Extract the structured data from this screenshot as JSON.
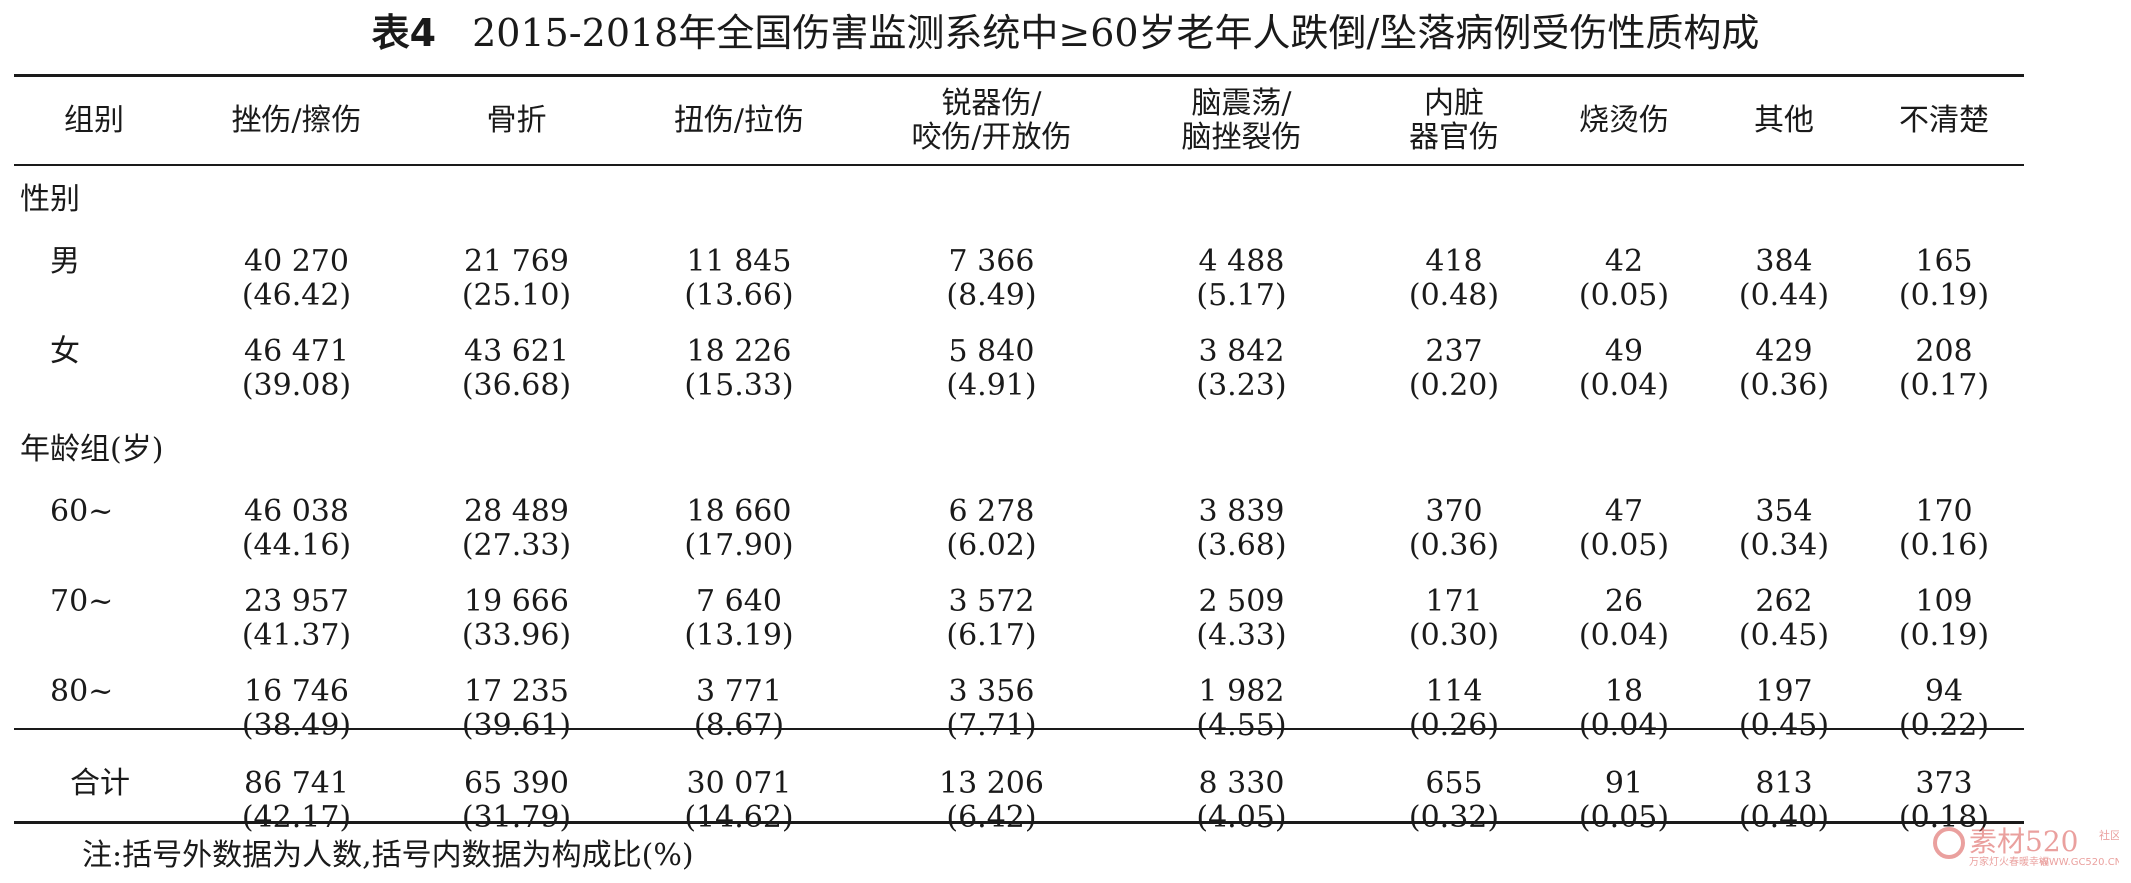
{
  "title": {
    "label": "表4",
    "text": "2015-2018年全国伤害监测系统中≥60岁老年人跌倒/坠落病例受伤性质构成"
  },
  "headers": [
    [
      "组别"
    ],
    [
      "挫伤/擦伤"
    ],
    [
      "骨折"
    ],
    [
      "扭伤/拉伤"
    ],
    [
      "锐器伤/",
      "咬伤/开放伤"
    ],
    [
      "脑震荡/",
      "脑挫裂伤"
    ],
    [
      "内脏",
      "器官伤"
    ],
    [
      "烧烫伤"
    ],
    [
      "其他"
    ],
    [
      "不清楚"
    ]
  ],
  "groups": [
    {
      "name": "性别",
      "rows": [
        {
          "label": "男",
          "cells": [
            {
              "n": "40 270",
              "p": "(46.42)"
            },
            {
              "n": "21 769",
              "p": "(25.10)"
            },
            {
              "n": "11 845",
              "p": "(13.66)"
            },
            {
              "n": "7 366",
              "p": "(8.49)"
            },
            {
              "n": "4 488",
              "p": "(5.17)"
            },
            {
              "n": "418",
              "p": "(0.48)"
            },
            {
              "n": "42",
              "p": "(0.05)"
            },
            {
              "n": "384",
              "p": "(0.44)"
            },
            {
              "n": "165",
              "p": "(0.19)"
            }
          ]
        },
        {
          "label": "女",
          "cells": [
            {
              "n": "46 471",
              "p": "(39.08)"
            },
            {
              "n": "43 621",
              "p": "(36.68)"
            },
            {
              "n": "18 226",
              "p": "(15.33)"
            },
            {
              "n": "5 840",
              "p": "(4.91)"
            },
            {
              "n": "3 842",
              "p": "(3.23)"
            },
            {
              "n": "237",
              "p": "(0.20)"
            },
            {
              "n": "49",
              "p": "(0.04)"
            },
            {
              "n": "429",
              "p": "(0.36)"
            },
            {
              "n": "208",
              "p": "(0.17)"
            }
          ]
        }
      ]
    },
    {
      "name": "年龄组(岁)",
      "rows": [
        {
          "label": "60~",
          "cells": [
            {
              "n": "46 038",
              "p": "(44.16)"
            },
            {
              "n": "28 489",
              "p": "(27.33)"
            },
            {
              "n": "18 660",
              "p": "(17.90)"
            },
            {
              "n": "6 278",
              "p": "(6.02)"
            },
            {
              "n": "3 839",
              "p": "(3.68)"
            },
            {
              "n": "370",
              "p": "(0.36)"
            },
            {
              "n": "47",
              "p": "(0.05)"
            },
            {
              "n": "354",
              "p": "(0.34)"
            },
            {
              "n": "170",
              "p": "(0.16)"
            }
          ]
        },
        {
          "label": "70~",
          "cells": [
            {
              "n": "23 957",
              "p": "(41.37)"
            },
            {
              "n": "19 666",
              "p": "(33.96)"
            },
            {
              "n": "7 640",
              "p": "(13.19)"
            },
            {
              "n": "3 572",
              "p": "(6.17)"
            },
            {
              "n": "2 509",
              "p": "(4.33)"
            },
            {
              "n": "171",
              "p": "(0.30)"
            },
            {
              "n": "26",
              "p": "(0.04)"
            },
            {
              "n": "262",
              "p": "(0.45)"
            },
            {
              "n": "109",
              "p": "(0.19)"
            }
          ]
        },
        {
          "label": "80~",
          "cells": [
            {
              "n": "16 746",
              "p": "(38.49)"
            },
            {
              "n": "17 235",
              "p": "(39.61)"
            },
            {
              "n": "3 771",
              "p": "(8.67)"
            },
            {
              "n": "3 356",
              "p": "(7.71)"
            },
            {
              "n": "1 982",
              "p": "(4.55)"
            },
            {
              "n": "114",
              "p": "(0.26)"
            },
            {
              "n": "18",
              "p": "(0.04)"
            },
            {
              "n": "197",
              "p": "(0.45)"
            },
            {
              "n": "94",
              "p": "(0.22)"
            }
          ]
        }
      ]
    }
  ],
  "total": {
    "label": "合计",
    "cells": [
      {
        "n": "86 741",
        "p": "(42.17)"
      },
      {
        "n": "65 390",
        "p": "(31.79)"
      },
      {
        "n": "30 071",
        "p": "(14.62)"
      },
      {
        "n": "13 206",
        "p": "(6.42)"
      },
      {
        "n": "8 330",
        "p": "(4.05)"
      },
      {
        "n": "655",
        "p": "(0.32)"
      },
      {
        "n": "91",
        "p": "(0.05)"
      },
      {
        "n": "813",
        "p": "(0.40)"
      },
      {
        "n": "373",
        "p": "(0.18)"
      }
    ]
  },
  "note": "注:括号外数据为人数,括号内数据为构成比(%)",
  "watermark": {
    "brand": "素材520",
    "slogan": "万家灯火春暖幸福",
    "url": "WWW.GC520.CN",
    "side": "社区",
    "color": "#d9534f"
  }
}
